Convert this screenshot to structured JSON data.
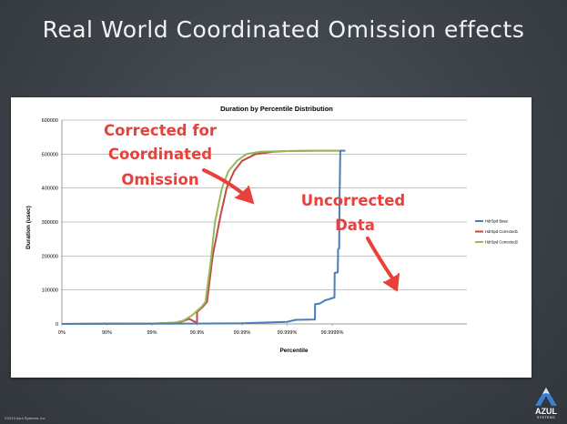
{
  "slide": {
    "title": "Real World Coordinated Omission effects",
    "footer": "©2013 Azul Systems, Inc.",
    "logo_text": "AZUL",
    "logo_subtext": "SYSTEMS"
  },
  "annotations": {
    "corrected": [
      "Corrected for",
      "Coordinated",
      "Omission"
    ],
    "uncorrected": [
      "Uncorrected",
      "Data"
    ],
    "color": "#e8413c"
  },
  "chart_data": {
    "type": "line",
    "title": "Duration by Percentile Distribution",
    "xlabel": "Percentile",
    "ylabel": "Duration (usec)",
    "x_scale": "percentile-log (1/(1-p))",
    "x_ticks": [
      {
        "label": "0%",
        "p": 0
      },
      {
        "label": "90%",
        "p": 0.9
      },
      {
        "label": "99%",
        "p": 0.99
      },
      {
        "label": "99.9%",
        "p": 0.999
      },
      {
        "label": "99.99%",
        "p": 0.9999
      },
      {
        "label": "99.999%",
        "p": 0.99999
      },
      {
        "label": "99.9999%",
        "p": 0.999999
      }
    ],
    "ylim": [
      0,
      600000
    ],
    "y_ticks": [
      0,
      100000,
      200000,
      300000,
      400000,
      500000,
      600000
    ],
    "y_tick_labels": [
      "0",
      "100000",
      "200000",
      "300000",
      "400000",
      "500000",
      "600000"
    ],
    "grid": true,
    "legend_position": "right",
    "series": [
      {
        "name": "HdrSpd Base",
        "color": "#4a7ebb",
        "points": [
          [
            0,
            0
          ],
          [
            0.9,
            500
          ],
          [
            0.99,
            800
          ],
          [
            0.999,
            1000
          ],
          [
            0.9999,
            2000
          ],
          [
            0.99999,
            6000
          ],
          [
            0.9999936,
            12000
          ],
          [
            0.99999759,
            13000
          ],
          [
            0.9999976,
            58000
          ],
          [
            0.99999812,
            60000
          ],
          [
            0.99999837,
            65000
          ],
          [
            0.99999859,
            70000
          ],
          [
            0.99999879,
            72000
          ],
          [
            0.99999895,
            75000
          ],
          [
            0.99999911,
            78000
          ],
          [
            0.99999912,
            150000
          ],
          [
            0.99999925,
            152000
          ],
          [
            0.99999926,
            220000
          ],
          [
            0.9999993,
            222000
          ],
          [
            0.99999931,
            350000
          ],
          [
            0.99999934,
            510000
          ],
          [
            0.99999949,
            510000
          ]
        ]
      },
      {
        "name": "HdrSpd Corrected1",
        "color": "#be4b48",
        "points": [
          [
            0,
            0
          ],
          [
            0.9,
            500
          ],
          [
            0.99,
            1000
          ],
          [
            0.999,
            3000
          ],
          [
            0.9975,
            4000
          ],
          [
            0.9985,
            15000
          ],
          [
            0.999,
            35000
          ],
          [
            0.99925,
            50000
          ],
          [
            0.9994,
            65000
          ],
          [
            0.99955,
            200000
          ],
          [
            0.9997,
            320000
          ],
          [
            0.99978,
            400000
          ],
          [
            0.99985,
            450000
          ],
          [
            0.9999,
            480000
          ],
          [
            0.99995,
            500000
          ],
          [
            0.99998,
            507000
          ],
          [
            0.99999,
            509000
          ],
          [
            0.999998,
            510000
          ],
          [
            0.99999934,
            510000
          ]
        ]
      },
      {
        "name": "HdrSpd Corrected2",
        "color": "#98b954",
        "points": [
          [
            0,
            0
          ],
          [
            0.9,
            500
          ],
          [
            0.99,
            1000
          ],
          [
            0.997,
            4000
          ],
          [
            0.998,
            10000
          ],
          [
            0.9987,
            25000
          ],
          [
            0.9992,
            50000
          ],
          [
            0.99935,
            65000
          ],
          [
            0.9995,
            180000
          ],
          [
            0.9996,
            300000
          ],
          [
            0.99972,
            400000
          ],
          [
            0.9998,
            450000
          ],
          [
            0.99987,
            480000
          ],
          [
            0.99992,
            500000
          ],
          [
            0.99996,
            507000
          ],
          [
            0.99999,
            509000
          ],
          [
            0.999997,
            510000
          ],
          [
            0.99999934,
            510000
          ]
        ]
      }
    ]
  }
}
